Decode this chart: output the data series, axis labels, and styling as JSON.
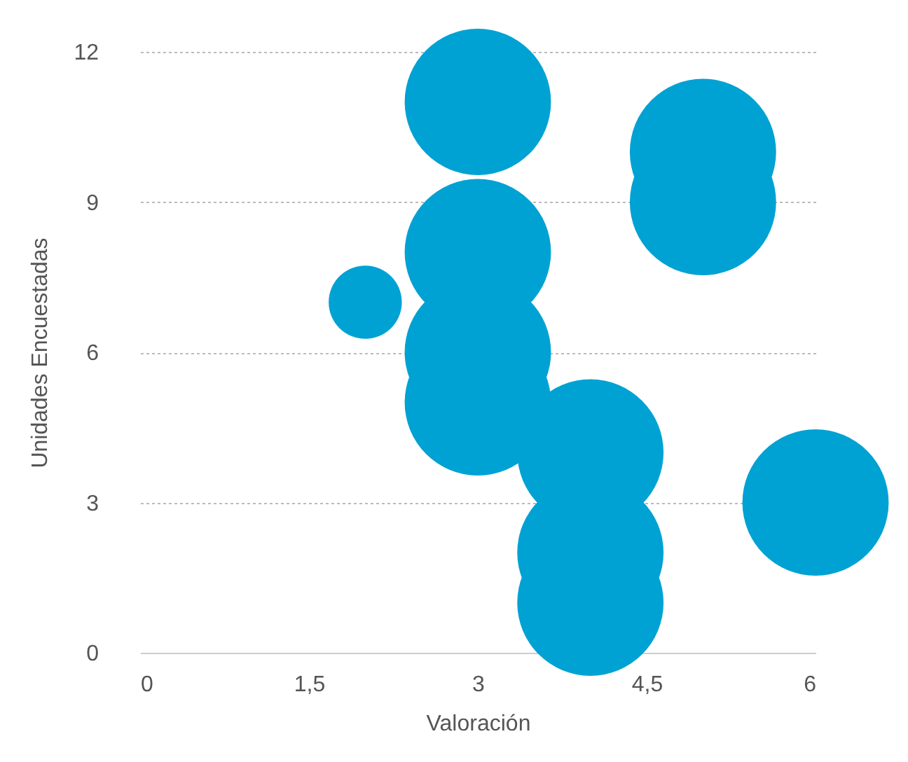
{
  "chart_data": {
    "type": "bubble",
    "xlabel": "Valoración",
    "ylabel": "Unidades Encuestadas",
    "x": [
      2,
      3,
      3,
      3,
      3,
      4,
      4,
      4,
      5,
      5,
      6
    ],
    "values": [
      7,
      11,
      8,
      6,
      5,
      4,
      2,
      1,
      10,
      9,
      3
    ],
    "sizes": [
      0.25,
      1,
      1,
      1,
      1,
      1,
      1,
      1,
      1,
      1,
      1
    ],
    "color": "#00a2d3",
    "xlim": [
      0,
      6
    ],
    "xticks": [
      0,
      {
        "value": 1.5,
        "label": "1,5"
      },
      3,
      {
        "value": 4.5,
        "label": "4,5"
      },
      6
    ],
    "ylim": [
      0,
      12
    ],
    "yticks": [
      0,
      3,
      6,
      9,
      12
    ],
    "grid": "y",
    "legend": false
  }
}
